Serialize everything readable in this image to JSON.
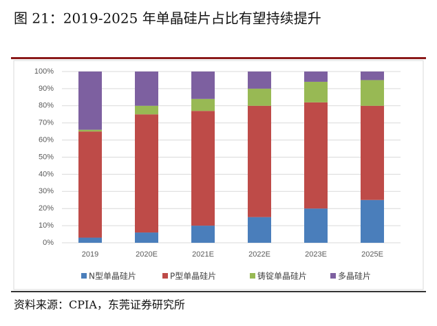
{
  "chart_data": {
    "type": "stacked-bar",
    "title": "图 21：2019-2025 年单晶硅片占比有望持续提升",
    "source": "资料来源：CPIA，东莞证券研究所",
    "categories": [
      "2019",
      "2020E",
      "2021E",
      "2022E",
      "2023E",
      "2025E"
    ],
    "series": [
      {
        "name": "N型单晶硅片",
        "color": "#4a7ebb",
        "values": [
          3,
          6,
          10,
          15,
          20,
          25
        ]
      },
      {
        "name": "P型单晶硅片",
        "color": "#be4b48",
        "values": [
          62,
          69,
          67,
          65,
          62,
          55
        ]
      },
      {
        "name": "铸锭单晶硅片",
        "color": "#98b954",
        "values": [
          1,
          5,
          7,
          10,
          12,
          15
        ]
      },
      {
        "name": "多晶硅片",
        "color": "#7d60a0",
        "values": [
          34,
          20,
          16,
          10,
          6,
          5
        ]
      }
    ],
    "ylim": [
      0,
      100
    ],
    "yticks": [
      {
        "value": 0,
        "label": "0%"
      },
      {
        "value": 10,
        "label": "10%"
      },
      {
        "value": 20,
        "label": "20%"
      },
      {
        "value": 30,
        "label": "30%"
      },
      {
        "value": 40,
        "label": "40%"
      },
      {
        "value": 50,
        "label": "50%"
      },
      {
        "value": 60,
        "label": "60%"
      },
      {
        "value": 70,
        "label": "70%"
      },
      {
        "value": 80,
        "label": "80%"
      },
      {
        "value": 90,
        "label": "90%"
      },
      {
        "value": 100,
        "label": "100%"
      }
    ],
    "grid": true
  }
}
